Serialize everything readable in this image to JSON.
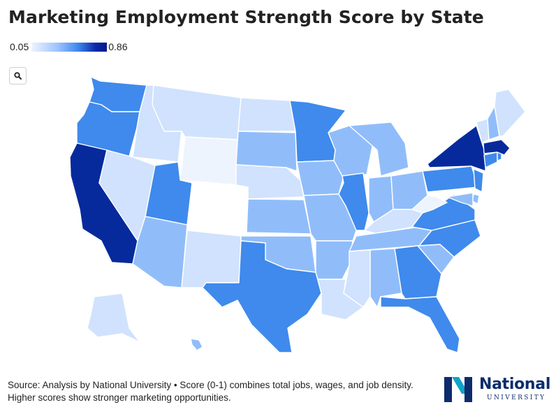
{
  "title": "Marketing Employment Strength Score by State",
  "legend": {
    "min_label": "0.05",
    "max_label": "0.86"
  },
  "zoom_icon": "search-icon",
  "source": "Source: Analysis by National University • Score (0-1) combines total jobs, wages, and job density. Higher scores show stronger marketing opportunities.",
  "logo": {
    "word": "National",
    "sub": "UNIVERSITY",
    "colors": [
      "#0d2c6c",
      "#12a3c9"
    ]
  },
  "colors": {
    "very_light": "#eef4fd",
    "light": "#d0e2fd",
    "light_mid": "#a9cbfb",
    "mid": "#90bdfa",
    "strong": "#3f8aec",
    "very_strong": "#062a9c",
    "white": "#ffffff"
  },
  "states": [
    {
      "code": "WA",
      "color": "strong"
    },
    {
      "code": "OR",
      "color": "strong"
    },
    {
      "code": "CA",
      "color": "very_strong"
    },
    {
      "code": "ID",
      "color": "light"
    },
    {
      "code": "NV",
      "color": "light"
    },
    {
      "code": "MT",
      "color": "light"
    },
    {
      "code": "WY",
      "color": "very_light"
    },
    {
      "code": "UT",
      "color": "strong"
    },
    {
      "code": "AZ",
      "color": "mid"
    },
    {
      "code": "CO",
      "color": "white"
    },
    {
      "code": "NM",
      "color": "light"
    },
    {
      "code": "ND",
      "color": "light"
    },
    {
      "code": "SD",
      "color": "mid"
    },
    {
      "code": "NE",
      "color": "light"
    },
    {
      "code": "KS",
      "color": "mid"
    },
    {
      "code": "OK",
      "color": "mid"
    },
    {
      "code": "TX",
      "color": "strong"
    },
    {
      "code": "MN",
      "color": "strong"
    },
    {
      "code": "IA",
      "color": "mid"
    },
    {
      "code": "MO",
      "color": "mid"
    },
    {
      "code": "AR",
      "color": "mid"
    },
    {
      "code": "LA",
      "color": "light"
    },
    {
      "code": "WI",
      "color": "mid"
    },
    {
      "code": "IL",
      "color": "strong"
    },
    {
      "code": "MI",
      "color": "mid"
    },
    {
      "code": "IN",
      "color": "mid"
    },
    {
      "code": "OH",
      "color": "mid"
    },
    {
      "code": "KY",
      "color": "light"
    },
    {
      "code": "TN",
      "color": "mid"
    },
    {
      "code": "MS",
      "color": "light"
    },
    {
      "code": "AL",
      "color": "mid"
    },
    {
      "code": "GA",
      "color": "strong"
    },
    {
      "code": "FL",
      "color": "strong"
    },
    {
      "code": "SC",
      "color": "mid"
    },
    {
      "code": "NC",
      "color": "strong"
    },
    {
      "code": "VA",
      "color": "strong"
    },
    {
      "code": "WV",
      "color": "very_light"
    },
    {
      "code": "PA",
      "color": "strong"
    },
    {
      "code": "NY",
      "color": "very_strong"
    },
    {
      "code": "NJ",
      "color": "strong"
    },
    {
      "code": "DE",
      "color": "mid"
    },
    {
      "code": "MD",
      "color": "mid"
    },
    {
      "code": "CT",
      "color": "strong"
    },
    {
      "code": "RI",
      "color": "strong"
    },
    {
      "code": "MA",
      "color": "very_strong"
    },
    {
      "code": "VT",
      "color": "light"
    },
    {
      "code": "NH",
      "color": "mid"
    },
    {
      "code": "ME",
      "color": "light"
    },
    {
      "code": "AK",
      "color": "light"
    },
    {
      "code": "HI",
      "color": "mid"
    }
  ]
}
